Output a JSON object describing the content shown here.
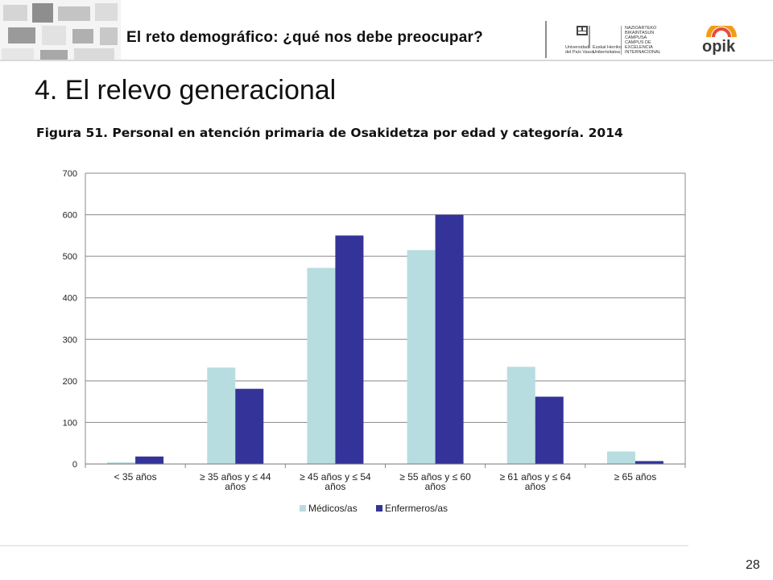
{
  "header": {
    "title": "El reto demográfico: ¿qué nos debe preocupar?",
    "upv_lines": [
      "Universidad",
      "del País Vasco"
    ],
    "ehu_lines": [
      "Euskal Herriko",
      "Unibertsitatea"
    ],
    "campus_lines": [
      "NAZIOARTEKO",
      "BIKAINTASUN",
      "CAMPUSA",
      "CAMPUS DE",
      "EXCELENCIA",
      "INTERNACIONAL"
    ],
    "opik_logo_text": "opik"
  },
  "section_title": "4. El relevo generacional",
  "figure_caption": "Figura 51. Personal en atención primaria de Osakidetza por edad y categoría. 2014",
  "page_number": "28",
  "colors": {
    "medicos": "#b7dde0",
    "enfermeros": "#333399",
    "grid": "#888888"
  },
  "chart_data": {
    "type": "bar",
    "categories": [
      [
        "< 35 años"
      ],
      [
        "≥ 35 años y ≤ 44",
        "años"
      ],
      [
        "≥ 45 años y ≤ 54",
        "años"
      ],
      [
        "≥ 55 años y ≤ 60",
        "años"
      ],
      [
        "≥ 61 años y ≤ 64",
        "años"
      ],
      [
        "≥ 65 años"
      ]
    ],
    "series": [
      {
        "name": "Médicos/as",
        "values": [
          4,
          232,
          472,
          515,
          234,
          30
        ]
      },
      {
        "name": "Enfermeros/as",
        "values": [
          18,
          181,
          550,
          600,
          162,
          7
        ]
      }
    ],
    "ylim": [
      0,
      700
    ],
    "yticks": [
      0,
      100,
      200,
      300,
      400,
      500,
      600,
      700
    ],
    "grid": true,
    "legend": "bottom",
    "title": "",
    "xlabel": "",
    "ylabel": ""
  }
}
